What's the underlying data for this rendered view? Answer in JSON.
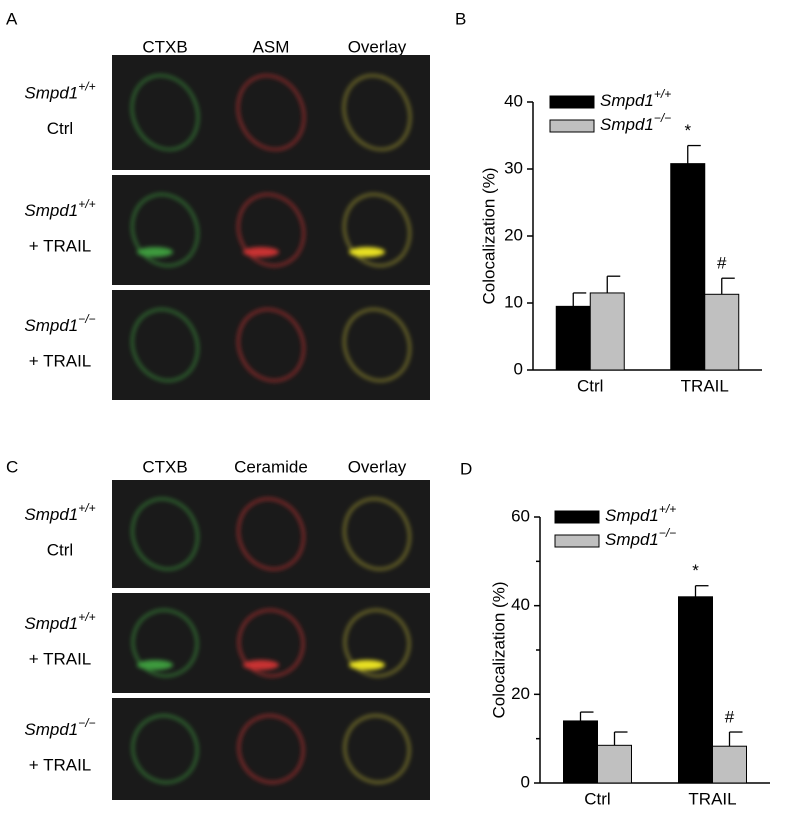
{
  "panel_labels": [
    "A",
    "B",
    "C",
    "D"
  ],
  "image_panels": [
    {
      "columns": [
        "CTXB",
        "ASM",
        "Overlay"
      ],
      "rows": [
        {
          "gene": "Smpd1",
          "genotype": "+/+",
          "treatment": "Ctrl"
        },
        {
          "gene": "Smpd1",
          "genotype": "+/+",
          "treatment": "+ TRAIL"
        },
        {
          "gene": "Smpd1",
          "genotype": "−/−",
          "treatment": "+ TRAIL"
        }
      ]
    },
    {
      "columns": [
        "CTXB",
        "Ceramide",
        "Overlay"
      ],
      "rows": [
        {
          "gene": "Smpd1",
          "genotype": "+/+",
          "treatment": "Ctrl"
        },
        {
          "gene": "Smpd1",
          "genotype": "+/+",
          "treatment": "+ TRAIL"
        },
        {
          "gene": "Smpd1",
          "genotype": "−/−",
          "treatment": "+ TRAIL"
        }
      ]
    }
  ],
  "chart_data": [
    {
      "type": "bar",
      "y_label": "Colocalization (%)",
      "categories": [
        "Ctrl",
        "TRAIL"
      ],
      "series": [
        {
          "name": "Smpd1",
          "genotype": "+/+",
          "color": "#000000",
          "values": [
            9.5,
            30.8
          ],
          "errors": [
            2,
            2.7
          ]
        },
        {
          "name": "Smpd1",
          "genotype": "−/−",
          "color": "#c0c0c0",
          "values": [
            11.5,
            11.3
          ],
          "errors": [
            2.5,
            2.4
          ]
        }
      ],
      "annotations": [
        {
          "text": "*",
          "series": 0,
          "category": "TRAIL"
        },
        {
          "text": "#",
          "series": 1,
          "category": "TRAIL"
        }
      ],
      "ylim": [
        0,
        40
      ],
      "yticks": [
        0,
        10,
        20,
        30,
        40
      ],
      "legend": "upper left"
    },
    {
      "type": "bar",
      "y_label": "Colocalization (%)",
      "categories": [
        "Ctrl",
        "TRAIL"
      ],
      "series": [
        {
          "name": "Smpd1",
          "genotype": "+/+",
          "color": "#000000",
          "values": [
            14,
            42
          ],
          "errors": [
            2,
            2.5
          ]
        },
        {
          "name": "Smpd1",
          "genotype": "−/−",
          "color": "#c0c0c0",
          "values": [
            8.5,
            8.3
          ],
          "errors": [
            3,
            3.2
          ]
        }
      ],
      "annotations": [
        {
          "text": "*",
          "series": 0,
          "category": "TRAIL"
        },
        {
          "text": "#",
          "series": 1,
          "category": "TRAIL"
        }
      ],
      "ylim": [
        0,
        60
      ],
      "yticks": [
        0,
        20,
        40,
        60
      ],
      "yminorticks": [
        10,
        30,
        50
      ],
      "legend": "upper left"
    }
  ]
}
